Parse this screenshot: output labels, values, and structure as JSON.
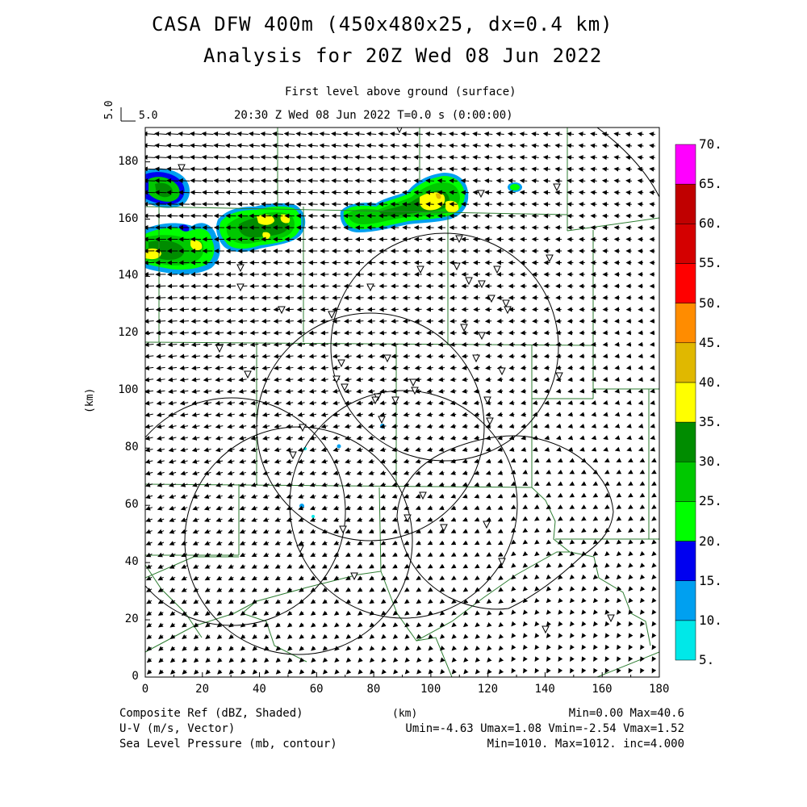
{
  "title": {
    "line1": "CASA DFW 400m (450x480x25, dx=0.4 km)",
    "line2": "Analysis for 20Z Wed 08 Jun 2022"
  },
  "subtitle": {
    "level": "First level above ground (surface)",
    "time": "20:30 Z Wed 08 Jun 2022    T=0.0 s (0:00:00)"
  },
  "vector_ref": {
    "value_vertical": "5.0",
    "value_horizontal": "5.0"
  },
  "axes": {
    "x_ticks": [
      "0",
      "20",
      "40",
      "60",
      "80",
      "100",
      "120",
      "140",
      "160",
      "180"
    ],
    "y_ticks": [
      "0",
      "20",
      "40",
      "60",
      "80",
      "100",
      "120",
      "140",
      "160",
      "180"
    ],
    "x_label": "(km)",
    "y_label": "(km)",
    "x_range": [
      0,
      180
    ],
    "y_range": [
      0,
      192
    ]
  },
  "colorbar": {
    "labels": [
      "5.",
      "10.",
      "15.",
      "20.",
      "25.",
      "30.",
      "35.",
      "40.",
      "45.",
      "50.",
      "55.",
      "60.",
      "65.",
      "70."
    ],
    "colors": [
      "#00e8e8",
      "#00a0f0",
      "#0000f0",
      "#00ff00",
      "#00c800",
      "#008c00",
      "#ffff00",
      "#e0b800",
      "#ff8c00",
      "#ff0000",
      "#d40000",
      "#c00000",
      "#ff00ff"
    ]
  },
  "footer": {
    "field1": "Composite Ref (dBZ, Shaded)",
    "field2": "U-V (m/s, Vector)",
    "field3": "Sea Level Pressure (mb, contour)",
    "center_unit": "(km)",
    "stats1": "Min=0.00 Max=40.6",
    "stats2": "Umin=-4.63 Umax=1.08 Vmin=-2.54 Vmax=1.52",
    "stats3": "Min=1010. Max=1012. inc=4.000"
  }
}
